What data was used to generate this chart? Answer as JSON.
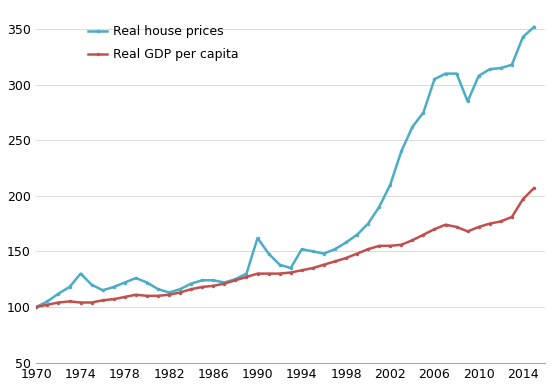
{
  "years": [
    1970,
    1971,
    1972,
    1973,
    1974,
    1975,
    1976,
    1977,
    1978,
    1979,
    1980,
    1981,
    1982,
    1983,
    1984,
    1985,
    1986,
    1987,
    1988,
    1989,
    1990,
    1991,
    1992,
    1993,
    1994,
    1995,
    1996,
    1997,
    1998,
    1999,
    2000,
    2001,
    2002,
    2003,
    2004,
    2005,
    2006,
    2007,
    2008,
    2009,
    2010,
    2011,
    2012,
    2013,
    2014,
    2015
  ],
  "house_prices": [
    100,
    105,
    112,
    118,
    130,
    120,
    115,
    118,
    122,
    126,
    122,
    116,
    113,
    116,
    121,
    124,
    124,
    122,
    125,
    130,
    162,
    148,
    138,
    135,
    152,
    150,
    148,
    152,
    158,
    165,
    175,
    190,
    210,
    240,
    262,
    275,
    305,
    310,
    310,
    285,
    308,
    314,
    315,
    318,
    343,
    352
  ],
  "gdp_per_capita": [
    100,
    102,
    104,
    105,
    104,
    104,
    106,
    107,
    109,
    111,
    110,
    110,
    111,
    113,
    116,
    118,
    119,
    121,
    124,
    127,
    130,
    130,
    130,
    131,
    133,
    135,
    138,
    141,
    144,
    148,
    152,
    155,
    155,
    156,
    160,
    165,
    170,
    174,
    172,
    168,
    172,
    175,
    177,
    181,
    197,
    207
  ],
  "house_color": "#4bacc6",
  "gdp_color": "#c0504d",
  "xlim": [
    1970,
    2016
  ],
  "ylim": [
    50,
    370
  ],
  "yticks": [
    50,
    100,
    150,
    200,
    250,
    300,
    350
  ],
  "xticks": [
    1970,
    1974,
    1978,
    1982,
    1986,
    1990,
    1994,
    1998,
    2002,
    2006,
    2010,
    2014
  ],
  "legend_house": "Real house prices",
  "legend_gdp": "Real GDP per capita",
  "background_color": "#ffffff",
  "line_width": 1.8
}
